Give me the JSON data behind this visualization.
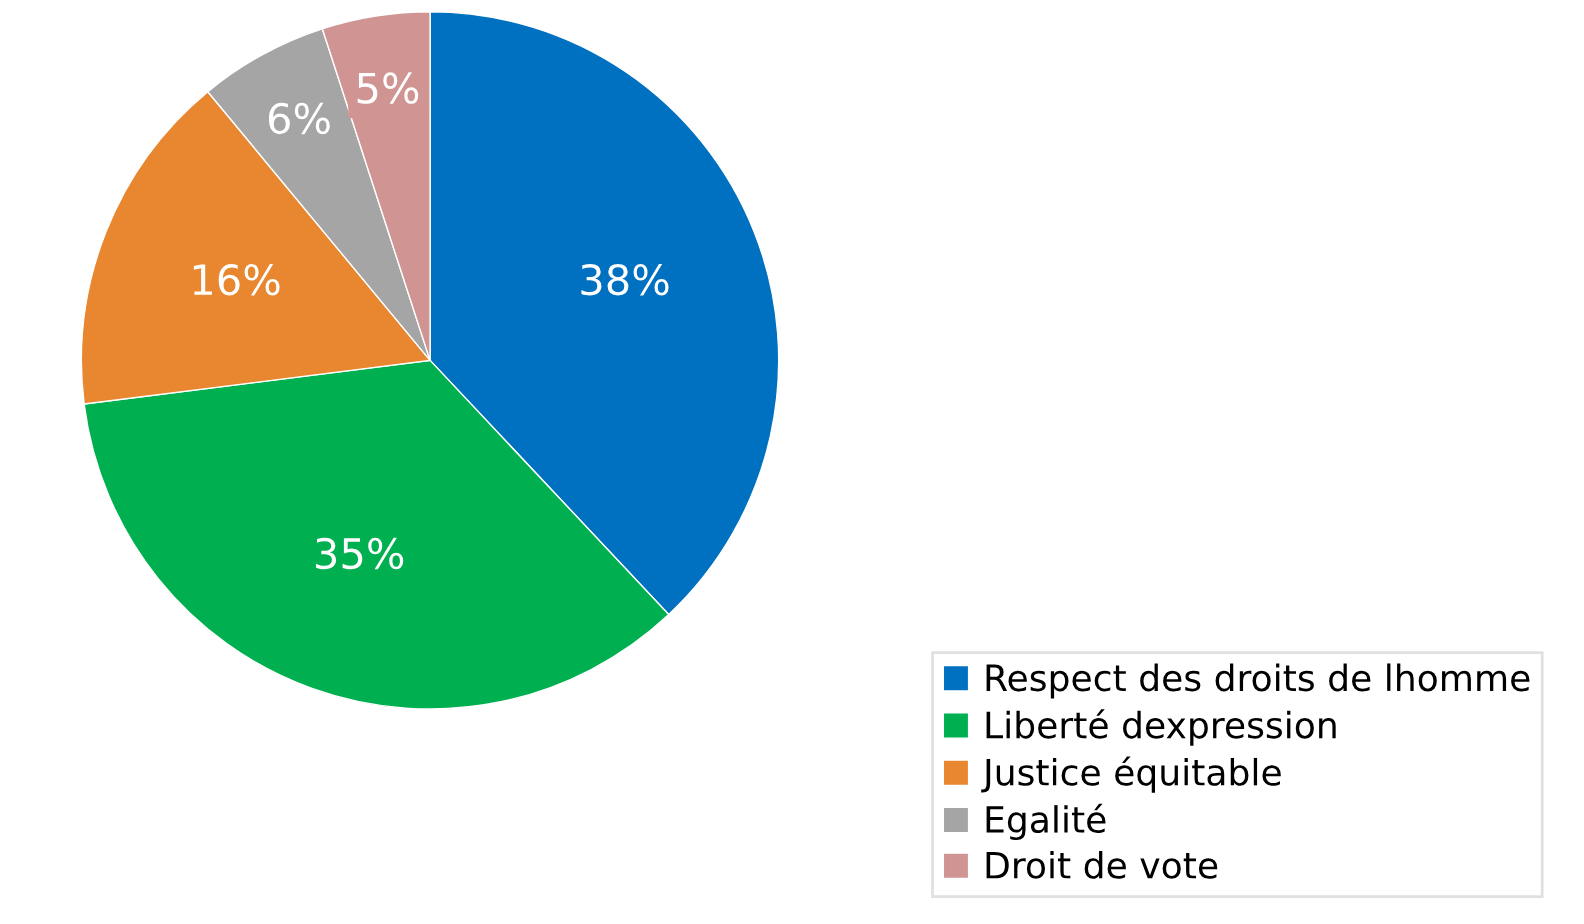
{
  "chart_data": {
    "type": "pie",
    "categories": [
      "Respect des droits de lhomme",
      "Liberté dexpression",
      "Justice équitable",
      "Egalité",
      "Droit de vote"
    ],
    "values": [
      38,
      35,
      16,
      6,
      5
    ],
    "colors": [
      "#0070c0",
      "#00b050",
      "#e8872f",
      "#a5a5a5",
      "#d09493"
    ],
    "value_labels": [
      "38%",
      "35%",
      "16%",
      "6%",
      "5%"
    ],
    "legend": "bottom right"
  }
}
